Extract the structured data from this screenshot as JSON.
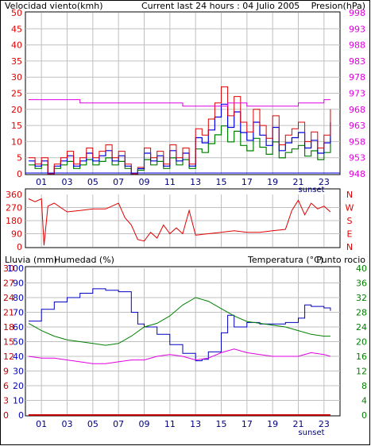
{
  "colors": {
    "wind": "#e00000",
    "gust_blue": "#0000e0",
    "gust_green": "#008000",
    "pressure": "#e000e0",
    "grid": "#c0c0c0",
    "humidity": "#0000c0",
    "temperature": "#008000",
    "dewpoint": "#e000e0",
    "rain": "#c00000"
  },
  "chart_data": [
    {
      "type": "line",
      "title": "Current last 24 hours : 04 Julio 2005",
      "left_label": "Velocidad viento(kmh)",
      "right_label": "Presion(hPa)",
      "xticks": [
        "01",
        "03",
        "05",
        "07",
        "09",
        "11",
        "13",
        "15",
        "17",
        "19",
        "21",
        "23"
      ],
      "x_annotation": "sunset",
      "yticks_left": [
        "0",
        "5",
        "10",
        "15",
        "20",
        "25",
        "30",
        "35",
        "40",
        "45",
        "50"
      ],
      "yticks_right": [
        "948",
        "953",
        "958",
        "963",
        "968",
        "973",
        "978",
        "983",
        "988",
        "993",
        "998"
      ],
      "ylim_left": [
        0,
        50
      ],
      "ylim_right": [
        948,
        998
      ],
      "series": [
        {
          "x": [
            0,
            0.5,
            1,
            1.5,
            2,
            2.5,
            3,
            3.5,
            4,
            4.5,
            5,
            5.5,
            6,
            6.5,
            7,
            7.5,
            8,
            8.5,
            9,
            9.5,
            10,
            10.5,
            11,
            11.5,
            12,
            12.5,
            13,
            13.5,
            14,
            14.5,
            15,
            15.5,
            16,
            16.5,
            17,
            17.5,
            18,
            18.5,
            19,
            19.5,
            20,
            20.5,
            21,
            21.5,
            22,
            22.5,
            23,
            23.5
          ],
          "values": [
            5,
            3,
            5,
            0,
            3,
            5,
            7,
            3,
            5,
            8,
            5,
            7,
            9,
            5,
            7,
            3,
            0,
            2,
            8,
            5,
            7,
            3,
            9,
            5,
            8,
            3,
            14,
            12,
            17,
            22,
            27,
            18,
            24,
            16,
            13,
            20,
            15,
            11,
            18,
            9,
            12,
            14,
            16,
            10,
            13,
            8,
            12,
            20
          ]
        },
        {
          "x": [
            0,
            1,
            2,
            3,
            4,
            5,
            6,
            7,
            8,
            9,
            10,
            11,
            12,
            13,
            14,
            15,
            15.5,
            16,
            17,
            18,
            19,
            20,
            21,
            22,
            23,
            23.5
          ],
          "values": [
            971,
            971,
            971,
            971,
            970,
            970,
            970,
            970,
            970,
            970,
            970,
            970,
            969,
            969,
            969,
            969,
            970,
            970,
            969,
            969,
            969,
            969,
            970,
            970,
            971,
            971
          ]
        }
      ]
    },
    {
      "type": "line",
      "right_letters": [
        "N",
        "W",
        "S",
        "E",
        "N"
      ],
      "yticks": [
        "0",
        "90",
        "180",
        "270",
        "360"
      ],
      "ylim": [
        0,
        360
      ],
      "series": [
        {
          "x": [
            0,
            0.5,
            1,
            1.2,
            1.5,
            2,
            3,
            4,
            5,
            6,
            7,
            7.5,
            8,
            8.5,
            9,
            9.5,
            10,
            10.5,
            11,
            11.5,
            12,
            12.5,
            13,
            14,
            15,
            16,
            17,
            18,
            19,
            20,
            20.5,
            21,
            21.5,
            22,
            22.5,
            23,
            23.5
          ],
          "values": [
            330,
            310,
            330,
            10,
            280,
            300,
            240,
            250,
            260,
            260,
            300,
            200,
            150,
            50,
            40,
            100,
            60,
            150,
            90,
            130,
            90,
            250,
            80,
            90,
            100,
            110,
            100,
            100,
            110,
            120,
            250,
            320,
            220,
            300,
            260,
            280,
            240
          ]
        }
      ]
    },
    {
      "type": "line",
      "left_labels": [
        "Lluvia (mm)",
        "Humedad (%)"
      ],
      "right_label": "Temperatura (°C)",
      "right_label_suffix": "Punto rocio",
      "x_annotation": "sunset",
      "xticks": [
        "01",
        "03",
        "05",
        "07",
        "09",
        "11",
        "13",
        "15",
        "17",
        "19",
        "21",
        "23"
      ],
      "yticks_rain": [
        "0",
        "3",
        "6",
        "9",
        "12",
        "15",
        "18",
        "21",
        "24",
        "27",
        "30"
      ],
      "yticks_hum": [
        "0",
        "10",
        "20",
        "30",
        "40",
        "50",
        "60",
        "70",
        "80",
        "90",
        "100"
      ],
      "yticks_temp": [
        "0",
        "4",
        "8",
        "12",
        "16",
        "20",
        "24",
        "28",
        "32",
        "36",
        "40"
      ],
      "ylim_rain": [
        0,
        30
      ],
      "ylim_hum": [
        0,
        100
      ],
      "ylim_temp": [
        0,
        40
      ],
      "series": [
        {
          "name": "Humedad (%)",
          "x": [
            0,
            1,
            2,
            3,
            4,
            5,
            6,
            7,
            8,
            8.5,
            9,
            10,
            11,
            12,
            13,
            13.5,
            14,
            15,
            15.5,
            16,
            17,
            18,
            19,
            20,
            21,
            21.5,
            22,
            23,
            23.5
          ],
          "values": [
            64,
            72,
            77,
            80,
            83,
            86,
            85,
            84,
            70,
            62,
            60,
            55,
            48,
            42,
            37,
            38,
            43,
            56,
            68,
            60,
            63,
            62,
            62,
            63,
            66,
            75,
            74,
            73,
            71
          ]
        },
        {
          "name": "Temperatura",
          "x": [
            0,
            1,
            2,
            3,
            4,
            5,
            6,
            7,
            8,
            9,
            10,
            11,
            12,
            13,
            14,
            15,
            16,
            17,
            18,
            19,
            20,
            21,
            22,
            23,
            23.5
          ],
          "values": [
            25,
            23,
            21.5,
            20.5,
            20,
            19.5,
            19,
            19.5,
            21.5,
            24,
            25,
            27,
            30,
            32,
            31,
            29,
            27,
            25.5,
            25,
            24.5,
            24,
            23,
            22,
            21.5,
            21.5
          ]
        },
        {
          "name": "Punto rocio",
          "x": [
            0,
            1,
            2,
            3,
            4,
            5,
            6,
            7,
            8,
            9,
            10,
            11,
            12,
            13,
            14,
            15,
            16,
            17,
            18,
            19,
            20,
            21,
            22,
            23,
            23.5
          ],
          "values": [
            16,
            15.5,
            15.5,
            15,
            14.5,
            14,
            14,
            14.5,
            15,
            15,
            16,
            16.5,
            16,
            15,
            15.5,
            17,
            18,
            17,
            16.5,
            16,
            16,
            16,
            17,
            16.5,
            16
          ]
        },
        {
          "name": "Lluvia (mm)",
          "x": [
            0,
            23.5
          ],
          "values": [
            0,
            0
          ]
        }
      ]
    }
  ]
}
